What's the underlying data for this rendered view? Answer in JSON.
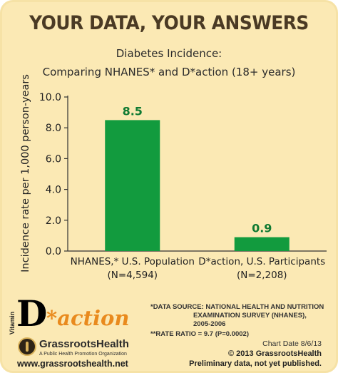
{
  "header": {
    "headline": "YOUR DATA, YOUR ANSWERS",
    "subtitle_line1": "Diabetes Incidence:",
    "subtitle_line2": "Comparing NHANES* and D*action (18+ years)"
  },
  "chart_data": {
    "type": "bar",
    "categories": [
      "NHANES,* U.S. Population",
      "D*action, U.S. Participants"
    ],
    "category_sublabels": [
      "(N=4,594)",
      "(N=2,208)"
    ],
    "values": [
      8.5,
      0.9
    ],
    "value_labels": [
      "8.5",
      "0.9"
    ],
    "ylabel": "Incidence rate per 1,000 person-years",
    "xlabel": "",
    "ylim": [
      0,
      10
    ],
    "yticks": [
      "0.0",
      "2.0",
      "4.0",
      "6.0",
      "8.0",
      "10.0"
    ],
    "grid": false,
    "legend": "none",
    "bar_color": "#129b3e",
    "label_color": "#0f7a32"
  },
  "footer": {
    "logo_vitamin": "Vitamin",
    "logo_d": "D",
    "logo_action": "*action",
    "org_name": "GrassrootsHealth",
    "org_tagline": "A Public Health Promotion Organization",
    "url": "www.grassrootshealth.net",
    "source_line1": "*DATA SOURCE: NATIONAL HEALTH AND NUTRITION",
    "source_line2": "EXAMINATION SURVEY (NHANES), 2005-2006",
    "rate_ratio": "**RATE RATIO = 9.7 (P=0.0002)",
    "chart_date": "Chart Date 8/6/13",
    "copyright": "© 2013 GrassrootsHealth",
    "preliminary": "Preliminary data, not yet published."
  },
  "colors": {
    "background": "#fbe9b4",
    "headline": "#4a3a24",
    "action_orange": "#e98a1d"
  }
}
